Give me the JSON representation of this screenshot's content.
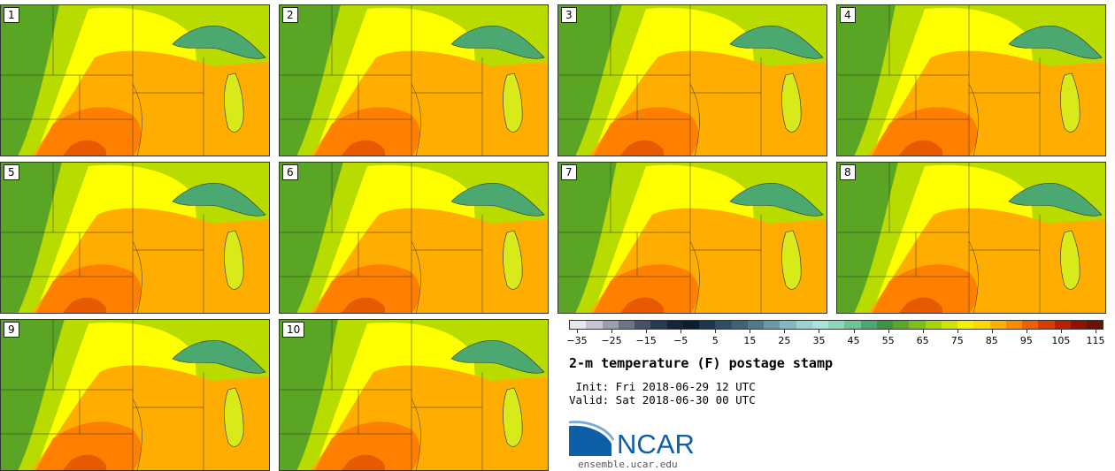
{
  "figure": {
    "title": "2-m temperature (F) postage stamp",
    "init_line": " Init: Fri 2018-06-29 12 UTC",
    "valid_line": "Valid: Sat 2018-06-30 00 UTC",
    "website": "ensemble.ucar.edu",
    "logo_text": "NCAR"
  },
  "panels": [
    {
      "label": "1"
    },
    {
      "label": "2"
    },
    {
      "label": "3"
    },
    {
      "label": "4"
    },
    {
      "label": "5"
    },
    {
      "label": "6"
    },
    {
      "label": "7"
    },
    {
      "label": "8"
    },
    {
      "label": "9"
    },
    {
      "label": "10"
    }
  ],
  "colorbar": {
    "ticks": [
      "−35",
      "−25",
      "−15",
      "−5",
      "5",
      "15",
      "25",
      "35",
      "45",
      "55",
      "65",
      "75",
      "85",
      "95",
      "105",
      "115"
    ],
    "colors": [
      "#e8e9ef",
      "#c4c7d2",
      "#9a9fae",
      "#6e7488",
      "#45506a",
      "#283a52",
      "#15243a",
      "#0d1b2e",
      "#1c3550",
      "#2e4d66",
      "#3e6277",
      "#4f7a8c",
      "#6a98a6",
      "#86b7c0",
      "#9ed2d2",
      "#a8e3dc",
      "#8dd8b8",
      "#6cc596",
      "#4aa870",
      "#3c9542",
      "#58a82a",
      "#7fbd18",
      "#a6d40a",
      "#cde300",
      "#f2f200",
      "#ffd800",
      "#ffb000",
      "#ff8a00",
      "#f06000",
      "#d83a00",
      "#b82000",
      "#8e1400",
      "#6a1206"
    ]
  },
  "colors": {
    "cold_green": "#5aa523",
    "mid_green": "#7cbf14",
    "yellow_green": "#b8dc00",
    "yellow": "#ffff00",
    "orange": "#ffad00",
    "deep_orange": "#ff7f00",
    "red_orange": "#e85a00",
    "lake": "#4aa870",
    "ncar_blue": "#0f5fa8"
  }
}
